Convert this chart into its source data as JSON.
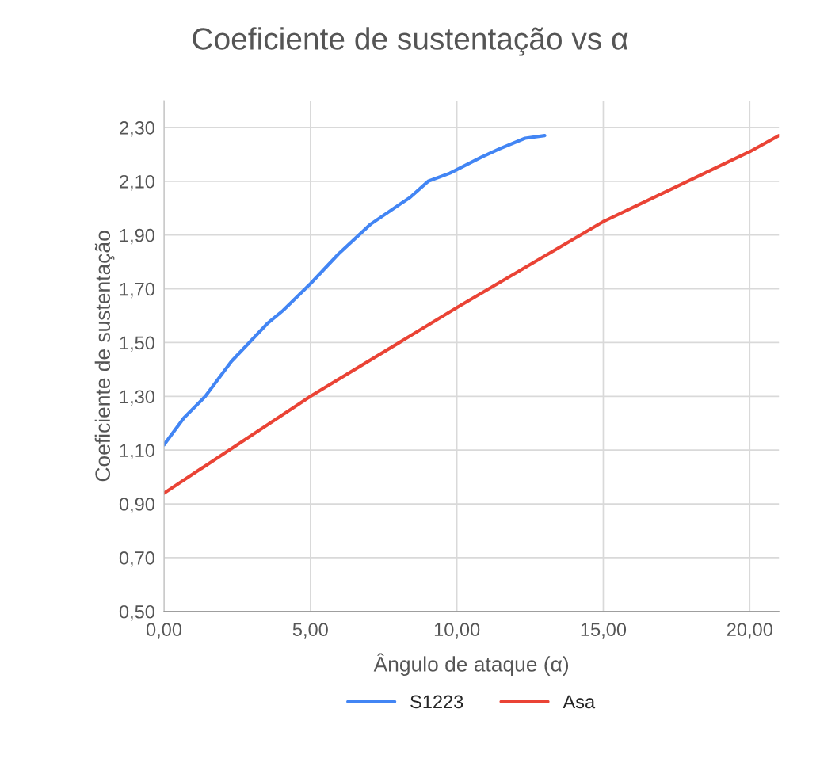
{
  "chart_data": {
    "type": "line",
    "title": "Coeficiente de sustentação vs α",
    "xlabel": "Ângulo de ataque (α)",
    "ylabel": "Coeficiente de sustentação",
    "series": [
      {
        "name": "S1223",
        "color": "#4285f4",
        "x": [
          0,
          0.68,
          1.41,
          2.3,
          3.52,
          4.07,
          5.01,
          5.96,
          7.05,
          8.4,
          9.02,
          9.76,
          10.84,
          11.44,
          12.33,
          13.0
        ],
        "values": [
          1.12,
          1.22,
          1.3,
          1.43,
          1.57,
          1.62,
          1.72,
          1.83,
          1.94,
          2.04,
          2.1,
          2.13,
          2.19,
          2.22,
          2.26,
          2.27
        ]
      },
      {
        "name": "Asa",
        "color": "#ea4335",
        "x": [
          0,
          5,
          10,
          15,
          20,
          21
        ],
        "values": [
          0.94,
          1.3,
          1.63,
          1.95,
          2.21,
          2.27
        ]
      }
    ],
    "xlim": [
      0,
      21
    ],
    "xticks": [
      {
        "value": 0,
        "label": "0,00"
      },
      {
        "value": 5,
        "label": "5,00"
      },
      {
        "value": 10,
        "label": "10,00"
      },
      {
        "value": 15,
        "label": "15,00"
      },
      {
        "value": 20,
        "label": "20,00"
      }
    ],
    "ylim": [
      0.5,
      2.4
    ],
    "yticks": [
      {
        "value": 0.5,
        "label": "0,50"
      },
      {
        "value": 0.7,
        "label": "0,70"
      },
      {
        "value": 0.9,
        "label": "0,90"
      },
      {
        "value": 1.1,
        "label": "1,10"
      },
      {
        "value": 1.3,
        "label": "1,30"
      },
      {
        "value": 1.5,
        "label": "1,50"
      },
      {
        "value": 1.7,
        "label": "1,70"
      },
      {
        "value": 1.9,
        "label": "1,90"
      },
      {
        "value": 2.1,
        "label": "2,10"
      },
      {
        "value": 2.3,
        "label": "2,30"
      }
    ],
    "grid": true,
    "legend": "bottom",
    "line_style": "solid",
    "marker": "none"
  }
}
